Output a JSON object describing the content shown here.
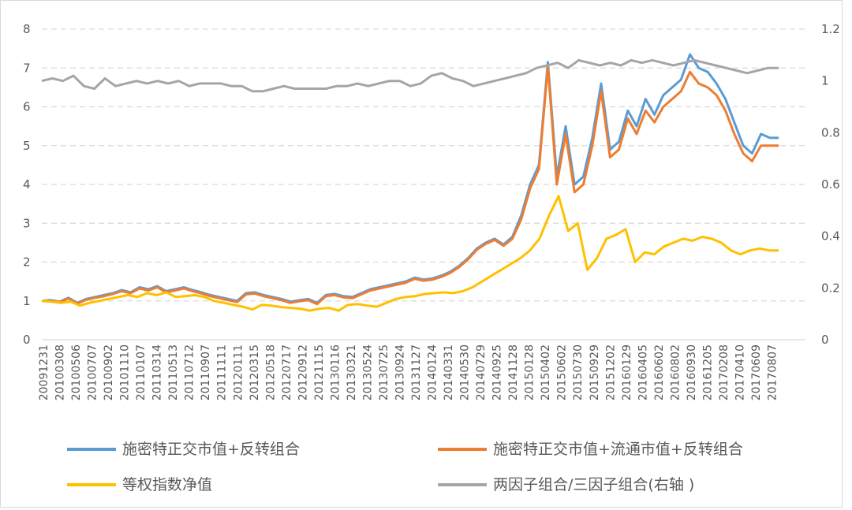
{
  "chart_data": {
    "type": "line",
    "title": "",
    "xlabel": "",
    "ylabel": "",
    "ylim": [
      0,
      8
    ],
    "y2lim": [
      0,
      1.2
    ],
    "yticks": [
      "0",
      "1",
      "2",
      "3",
      "4",
      "5",
      "6",
      "7",
      "8"
    ],
    "y2ticks": [
      "0",
      "0.2",
      "0.4",
      "0.6",
      "0.8",
      "1",
      "1.2"
    ],
    "grid": "horizontal-dashed",
    "legend_position": "bottom",
    "x_tick_labels": [
      "20091231",
      "20100308",
      "20100506",
      "20100707",
      "20100902",
      "20101110",
      "20110107",
      "20110314",
      "20110513",
      "20110712",
      "20110907",
      "20111111",
      "20120111",
      "20120315",
      "20120518",
      "20120717",
      "20120912",
      "20121115",
      "20130116",
      "20130321",
      "20130524",
      "20130725",
      "20130924",
      "20131127",
      "20140124",
      "20140331",
      "20140530",
      "20140729",
      "20140925",
      "20141128",
      "20150128",
      "20150402",
      "20150602",
      "20150730",
      "20150929",
      "20151202",
      "20160129",
      "20160405",
      "20160602",
      "20160802",
      "20160930",
      "20161205",
      "20170208",
      "20170410",
      "20170609",
      "20170807"
    ],
    "series": [
      {
        "name": "施密特正交市值+反转组合",
        "axis": "left",
        "color": "#5b9bd5",
        "values": [
          1.0,
          1.02,
          0.98,
          1.08,
          0.95,
          1.05,
          1.1,
          1.15,
          1.2,
          1.28,
          1.22,
          1.35,
          1.3,
          1.38,
          1.25,
          1.3,
          1.35,
          1.28,
          1.22,
          1.15,
          1.1,
          1.05,
          1.0,
          1.2,
          1.22,
          1.15,
          1.1,
          1.05,
          0.98,
          1.02,
          1.05,
          0.95,
          1.15,
          1.18,
          1.12,
          1.1,
          1.2,
          1.3,
          1.35,
          1.4,
          1.45,
          1.5,
          1.6,
          1.55,
          1.58,
          1.65,
          1.75,
          1.9,
          2.1,
          2.35,
          2.5,
          2.6,
          2.45,
          2.65,
          3.2,
          4.0,
          4.5,
          7.15,
          4.2,
          5.5,
          4.0,
          4.2,
          5.2,
          6.6,
          4.9,
          5.1,
          5.9,
          5.5,
          6.2,
          5.8,
          6.3,
          6.5,
          6.7,
          7.35,
          7.0,
          6.9,
          6.6,
          6.2,
          5.6,
          5.0,
          4.8,
          5.3,
          5.2,
          5.2
        ]
      },
      {
        "name": "施密特正交市值+流通市值+反转组合",
        "axis": "left",
        "color": "#ed7d31",
        "values": [
          1.0,
          1.0,
          0.97,
          1.06,
          0.93,
          1.03,
          1.08,
          1.12,
          1.18,
          1.25,
          1.2,
          1.32,
          1.27,
          1.35,
          1.22,
          1.27,
          1.32,
          1.25,
          1.19,
          1.12,
          1.07,
          1.02,
          0.97,
          1.17,
          1.19,
          1.12,
          1.07,
          1.02,
          0.95,
          0.99,
          1.02,
          0.92,
          1.12,
          1.15,
          1.09,
          1.07,
          1.17,
          1.27,
          1.32,
          1.37,
          1.42,
          1.47,
          1.57,
          1.52,
          1.55,
          1.62,
          1.72,
          1.87,
          2.07,
          2.32,
          2.47,
          2.57,
          2.42,
          2.6,
          3.1,
          3.9,
          4.4,
          7.05,
          4.0,
          5.3,
          3.8,
          4.0,
          5.0,
          6.4,
          4.7,
          4.9,
          5.7,
          5.3,
          5.9,
          5.6,
          6.0,
          6.2,
          6.4,
          6.9,
          6.6,
          6.5,
          6.3,
          5.9,
          5.3,
          4.8,
          4.6,
          5.0,
          5.0,
          5.0
        ]
      },
      {
        "name": "等权指数净值",
        "axis": "left",
        "color": "#ffc000",
        "values": [
          1.0,
          0.98,
          0.95,
          0.98,
          0.88,
          0.95,
          1.0,
          1.05,
          1.1,
          1.15,
          1.1,
          1.2,
          1.15,
          1.22,
          1.1,
          1.12,
          1.15,
          1.1,
          1.0,
          0.95,
          0.9,
          0.85,
          0.78,
          0.9,
          0.88,
          0.84,
          0.82,
          0.8,
          0.75,
          0.8,
          0.82,
          0.75,
          0.9,
          0.92,
          0.88,
          0.85,
          0.95,
          1.05,
          1.1,
          1.12,
          1.18,
          1.2,
          1.22,
          1.2,
          1.25,
          1.35,
          1.5,
          1.65,
          1.8,
          1.95,
          2.1,
          2.3,
          2.6,
          3.2,
          3.7,
          2.8,
          3.0,
          1.8,
          2.1,
          2.6,
          2.7,
          2.85,
          2.0,
          2.25,
          2.2,
          2.4,
          2.5,
          2.6,
          2.55,
          2.65,
          2.6,
          2.5,
          2.3,
          2.2,
          2.3,
          2.35,
          2.3,
          2.3
        ]
      },
      {
        "name": "两因子组合/三因子组合(右轴 )",
        "axis": "right",
        "color": "#a5a5a5",
        "values": [
          1.0,
          1.01,
          1.0,
          1.02,
          0.98,
          0.97,
          1.01,
          0.98,
          0.99,
          1.0,
          0.99,
          1.0,
          0.99,
          1.0,
          0.98,
          0.99,
          0.99,
          0.99,
          0.98,
          0.98,
          0.96,
          0.96,
          0.97,
          0.98,
          0.97,
          0.97,
          0.97,
          0.97,
          0.98,
          0.98,
          0.99,
          0.98,
          0.99,
          1.0,
          1.0,
          0.98,
          0.99,
          1.02,
          1.03,
          1.01,
          1.0,
          0.98,
          0.99,
          1.0,
          1.01,
          1.02,
          1.03,
          1.05,
          1.06,
          1.07,
          1.05,
          1.08,
          1.07,
          1.06,
          1.07,
          1.06,
          1.08,
          1.07,
          1.08,
          1.07,
          1.06,
          1.07,
          1.08,
          1.07,
          1.06,
          1.05,
          1.04,
          1.03,
          1.04,
          1.05,
          1.05
        ]
      }
    ]
  }
}
